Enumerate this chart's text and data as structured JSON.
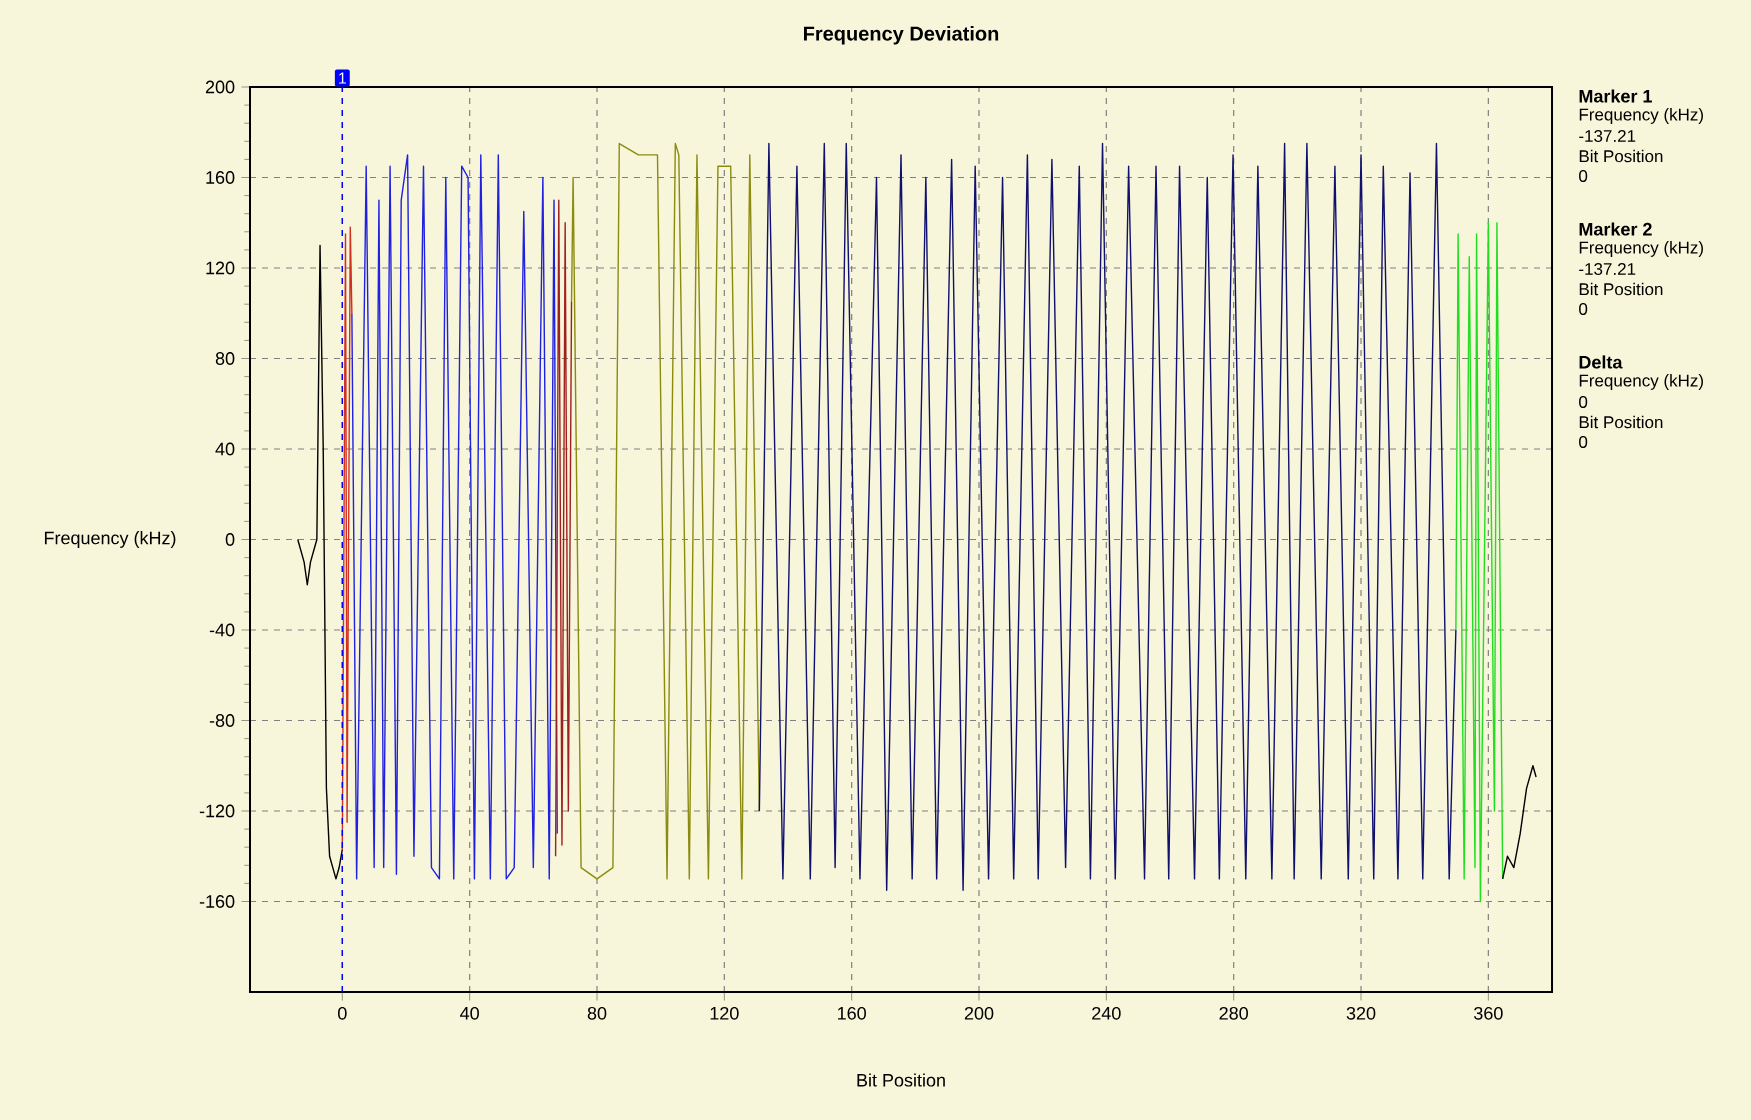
{
  "chart_data": {
    "type": "line",
    "title": "Frequency Deviation",
    "xlabel": "Bit Position",
    "ylabel": "Frequency (kHz)",
    "xlim": [
      -29,
      380
    ],
    "ylim": [
      -200,
      200
    ],
    "xticks": [
      0,
      40,
      80,
      120,
      160,
      200,
      240,
      280,
      320,
      360
    ],
    "yticks": [
      -160,
      -120,
      -80,
      -40,
      0,
      40,
      80,
      120,
      160,
      200
    ],
    "grid": true,
    "series": [
      {
        "color": "#000000",
        "x": [
          -14,
          -13,
          -12,
          -11,
          -10,
          -9,
          -8,
          -7,
          -6,
          -5,
          -4,
          -2,
          -1,
          0
        ],
        "values": [
          0,
          -5,
          -10,
          -20,
          -10,
          -5,
          0,
          130,
          40,
          -110,
          -140,
          -150,
          -145,
          -137
        ]
      },
      {
        "color": "#d03020",
        "x": [
          0,
          1,
          1.5,
          2.5,
          3
        ],
        "values": [
          -137,
          135,
          -125,
          138,
          100
        ]
      },
      {
        "color": "#2020e0",
        "x": [
          3,
          4.5,
          7.5,
          10,
          11.5,
          13,
          15,
          17,
          18.5,
          20.5,
          22.5,
          25.5,
          28,
          30.5,
          32.5,
          35,
          37.5,
          39.5,
          41.5,
          43.5,
          46.5,
          49,
          51.5,
          54,
          57,
          60,
          63,
          65,
          66.5,
          67.5
        ],
        "values": [
          100,
          -150,
          165,
          -145,
          150,
          -145,
          165,
          -148,
          150,
          170,
          -140,
          165,
          -145,
          -150,
          160,
          -150,
          165,
          160,
          -150,
          170,
          -150,
          170,
          -150,
          -145,
          145,
          -145,
          160,
          -150,
          150,
          -130
        ]
      },
      {
        "color": "#a02020",
        "x": [
          67,
          68,
          69,
          70,
          71,
          72
        ],
        "values": [
          -140,
          150,
          -135,
          140,
          -120,
          105
        ]
      },
      {
        "color": "#8b8b10",
        "x": [
          72,
          72.5,
          75,
          80,
          85,
          87,
          93,
          99,
          102,
          104.6,
          105.7,
          109,
          111.4,
          115,
          118,
          122,
          125.5,
          128,
          131
        ],
        "values": [
          105,
          160,
          -145,
          -150,
          -145,
          175,
          170,
          170,
          -150,
          175,
          170,
          -150,
          170,
          -150,
          165,
          165,
          -150,
          170,
          -120
        ]
      },
      {
        "color": "#10106e",
        "x": [
          131,
          134,
          138.4,
          142.8,
          147,
          151.4,
          154.8,
          158.3,
          162.6,
          167.8,
          171,
          175.5,
          179,
          183.3,
          186.7,
          191.4,
          195,
          198.8,
          203,
          207.4,
          210.9,
          215.2,
          218.6,
          222.9,
          227.2,
          231.5,
          235,
          238.8,
          242.8,
          247,
          252,
          255.6,
          259.6,
          263,
          267.7,
          271.7,
          275.5,
          279.8,
          283.8,
          287.6,
          292,
          296,
          299,
          303,
          307.5,
          311.8,
          316,
          320,
          324,
          327,
          331.6,
          335.4,
          339.4,
          343.7,
          347.7,
          349.8
        ],
        "values": [
          -120,
          175,
          -150,
          165,
          -150,
          175,
          -145,
          175,
          -150,
          160,
          -155,
          170,
          -150,
          160,
          -150,
          168,
          -155,
          165,
          -150,
          160,
          -150,
          170,
          -150,
          168,
          -145,
          165,
          -150,
          175,
          -150,
          165,
          -150,
          165,
          -150,
          165,
          -150,
          160,
          -150,
          170,
          -150,
          165,
          -150,
          175,
          -150,
          175,
          -150,
          165,
          -150,
          170,
          -150,
          165,
          -150,
          162,
          -150,
          175,
          -150,
          -40
        ]
      },
      {
        "color": "#22dd22",
        "x": [
          349.8,
          350.5,
          352.4,
          354,
          355.8,
          356.3,
          357.5,
          360,
          361.9,
          362.7,
          364.5
        ],
        "values": [
          -40,
          135,
          -150,
          125,
          -145,
          135,
          -160,
          140,
          -120,
          140,
          -150
        ]
      },
      {
        "color": "#000000",
        "x": [
          364.5,
          366,
          368,
          370,
          372,
          374,
          375
        ],
        "values": [
          -150,
          -140,
          -145,
          -130,
          -110,
          -100,
          -105
        ]
      }
    ],
    "ref_lines": [
      {
        "axis": "x",
        "value": 0,
        "color": "#0000ff",
        "line_style": "dashed"
      }
    ],
    "annotations": [
      {
        "text": "1",
        "x": 0,
        "y": 200
      },
      "Marker 1",
      "Frequency (kHz)",
      "-137.21",
      "Bit Position",
      "0",
      "Marker 2",
      "Frequency (kHz)",
      "-137.21",
      "Bit Position",
      "0",
      "Delta",
      "Frequency (kHz)",
      "0",
      "Bit Position",
      "0"
    ]
  }
}
